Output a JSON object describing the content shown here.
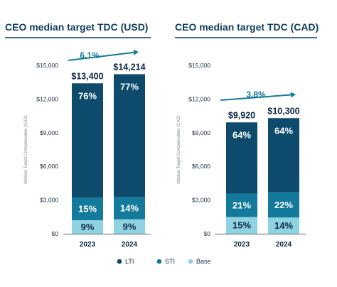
{
  "colors": {
    "LTI": "#0d4a6b",
    "STI": "#137a9c",
    "Base": "#8fd3e3",
    "arrow": "#137a9c",
    "title": "#0f3d5a"
  },
  "legend": [
    {
      "key": "LTI",
      "label": "LTI"
    },
    {
      "key": "STI",
      "label": "STI"
    },
    {
      "key": "Base",
      "label": "Base"
    }
  ],
  "chart_data": [
    {
      "type": "bar",
      "stacked": true,
      "title": "CEO median target TDC (USD)",
      "ylabel": "Median Target Compensation (USD)",
      "ylim": [
        0,
        15000
      ],
      "yticks": [
        "$0",
        "$3,000",
        "$6,000",
        "$9,000",
        "$12,000",
        "$15,000"
      ],
      "categories": [
        "2023",
        "2024"
      ],
      "totals": [
        13400,
        14214
      ],
      "total_labels": [
        "$13,400",
        "$14,214"
      ],
      "growth_label": "6.1%",
      "series": [
        {
          "name": "Base",
          "share_labels": [
            "9%",
            "9%"
          ],
          "shares": [
            9,
            9
          ]
        },
        {
          "name": "STI",
          "share_labels": [
            "15%",
            "14%"
          ],
          "shares": [
            15,
            14
          ]
        },
        {
          "name": "LTI",
          "share_labels": [
            "76%",
            "77%"
          ],
          "shares": [
            76,
            77
          ]
        }
      ]
    },
    {
      "type": "bar",
      "stacked": true,
      "title": "CEO median target TDC (CAD)",
      "ylabel": "Median Target Compensation (CAD)",
      "ylim": [
        0,
        15000
      ],
      "yticks": [
        "$0",
        "$3,000",
        "$6,000",
        "$9,000",
        "$12,000",
        "$15,000"
      ],
      "categories": [
        "2023",
        "2024"
      ],
      "totals": [
        9920,
        10300
      ],
      "total_labels": [
        "$9,920",
        "$10,300"
      ],
      "growth_label": "3.8%",
      "series": [
        {
          "name": "Base",
          "share_labels": [
            "15%",
            "14%"
          ],
          "shares": [
            15,
            14
          ]
        },
        {
          "name": "STI",
          "share_labels": [
            "21%",
            "22%"
          ],
          "shares": [
            21,
            22
          ]
        },
        {
          "name": "LTI",
          "share_labels": [
            "64%",
            "64%"
          ],
          "shares": [
            64,
            64
          ]
        }
      ]
    }
  ]
}
